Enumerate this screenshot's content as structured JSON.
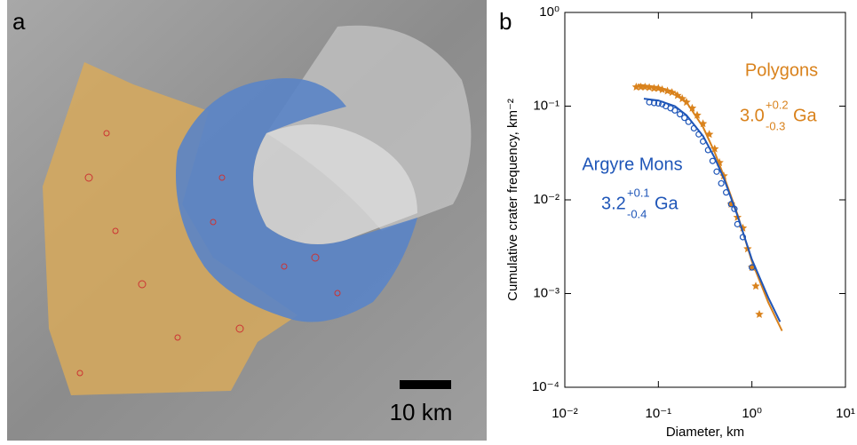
{
  "panel_a": {
    "label": "a",
    "scale_bar": "10 km"
  },
  "chart_data": {
    "type": "scatter",
    "panel_label": "b",
    "xlabel": "Diameter, km",
    "ylabel": "Cumulative crater frequency, km⁻²",
    "log_x": true,
    "log_y": true,
    "xlim": [
      0.01,
      10
    ],
    "ylim": [
      0.0001,
      1
    ],
    "xticks": [
      {
        "value": 0.01,
        "label": "10⁻²"
      },
      {
        "value": 0.1,
        "label": "10⁻¹"
      },
      {
        "value": 1,
        "label": "10⁰"
      },
      {
        "value": 10,
        "label": "10¹"
      }
    ],
    "yticks": [
      {
        "value": 0.0001,
        "label": "10⁻⁴"
      },
      {
        "value": 0.001,
        "label": "10⁻³"
      },
      {
        "value": 0.01,
        "label": "10⁻²"
      },
      {
        "value": 0.1,
        "label": "10⁻¹"
      },
      {
        "value": 1,
        "label": "10⁰"
      }
    ],
    "series": [
      {
        "name": "Polygons",
        "color": "#d9821c",
        "marker": "star",
        "age": "3.0",
        "age_plus": "+0.2",
        "age_minus": "-0.3",
        "age_unit": "Ga",
        "x": [
          0.058,
          0.065,
          0.072,
          0.08,
          0.09,
          0.1,
          0.11,
          0.125,
          0.14,
          0.16,
          0.18,
          0.2,
          0.23,
          0.26,
          0.3,
          0.35,
          0.4,
          0.45,
          0.5,
          0.6,
          0.7,
          0.8,
          0.9,
          1.0,
          1.1,
          1.2
        ],
        "values": [
          0.16,
          0.16,
          0.16,
          0.158,
          0.155,
          0.155,
          0.15,
          0.145,
          0.14,
          0.13,
          0.12,
          0.11,
          0.095,
          0.08,
          0.065,
          0.05,
          0.035,
          0.025,
          0.018,
          0.009,
          0.0065,
          0.005,
          0.003,
          0.0019,
          0.0012,
          0.0006
        ],
        "fit_x": [
          0.06,
          0.1,
          0.15,
          0.2,
          0.3,
          0.4,
          0.5,
          0.7,
          1.0,
          1.5,
          2.1
        ],
        "fit_values": [
          0.17,
          0.16,
          0.14,
          0.11,
          0.06,
          0.032,
          0.018,
          0.007,
          0.0022,
          0.0008,
          0.0004
        ]
      },
      {
        "name": "Argyre Mons",
        "color": "#1f56b8",
        "marker": "circle",
        "age": "3.2",
        "age_plus": "+0.1",
        "age_minus": "-0.4",
        "age_unit": "Ga",
        "x": [
          0.08,
          0.09,
          0.1,
          0.11,
          0.12,
          0.135,
          0.15,
          0.17,
          0.19,
          0.21,
          0.24,
          0.27,
          0.3,
          0.34,
          0.38,
          0.42,
          0.47,
          0.53,
          0.6,
          0.65,
          0.7,
          0.8,
          1.0
        ],
        "values": [
          0.11,
          0.108,
          0.107,
          0.105,
          0.1,
          0.095,
          0.09,
          0.082,
          0.075,
          0.068,
          0.058,
          0.05,
          0.042,
          0.034,
          0.026,
          0.02,
          0.015,
          0.012,
          0.009,
          0.008,
          0.0055,
          0.004,
          0.0019
        ],
        "fit_x": [
          0.07,
          0.1,
          0.15,
          0.2,
          0.3,
          0.4,
          0.5,
          0.7,
          1.0,
          1.5,
          2.0
        ],
        "fit_values": [
          0.12,
          0.115,
          0.1,
          0.08,
          0.048,
          0.028,
          0.017,
          0.0068,
          0.0023,
          0.0009,
          0.0005
        ]
      }
    ]
  }
}
